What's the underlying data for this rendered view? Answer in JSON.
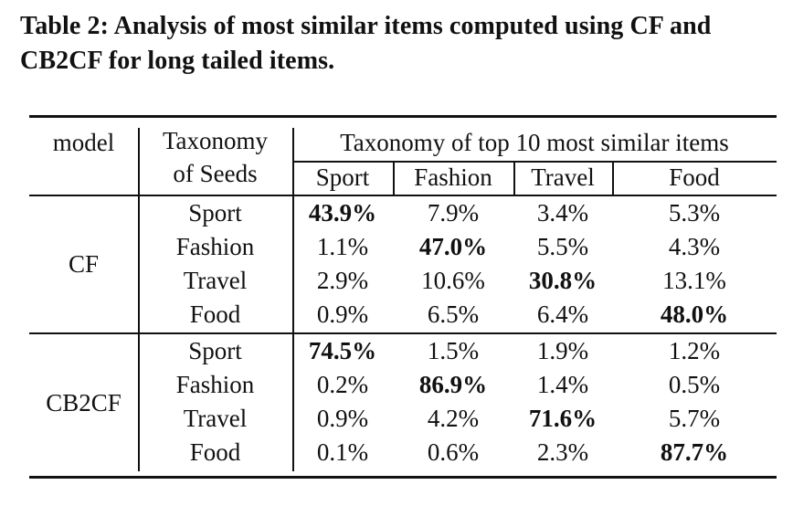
{
  "caption": "Table 2: Analysis of most similar items computed using CF and CB2CF for long tailed items.",
  "table": {
    "header": {
      "model": "model",
      "seed_line1": "Taxonomy",
      "seed_line2": "of Seeds",
      "group": "Taxonomy of top 10 most similar items",
      "columns": [
        "Sport",
        "Fashion",
        "Travel",
        "Food"
      ]
    },
    "groups": [
      {
        "model": "CF",
        "rows": [
          {
            "seed": "Sport",
            "values": [
              "43.9%",
              "7.9%",
              "3.4%",
              "5.3%"
            ],
            "bold": 0
          },
          {
            "seed": "Fashion",
            "values": [
              "1.1%",
              "47.0%",
              "5.5%",
              "4.3%"
            ],
            "bold": 1
          },
          {
            "seed": "Travel",
            "values": [
              "2.9%",
              "10.6%",
              "30.8%",
              "13.1%"
            ],
            "bold": 2
          },
          {
            "seed": "Food",
            "values": [
              "0.9%",
              "6.5%",
              "6.4%",
              "48.0%"
            ],
            "bold": 3
          }
        ]
      },
      {
        "model": "CB2CF",
        "rows": [
          {
            "seed": "Sport",
            "values": [
              "74.5%",
              "1.5%",
              "1.9%",
              "1.2%"
            ],
            "bold": 0
          },
          {
            "seed": "Fashion",
            "values": [
              "0.2%",
              "86.9%",
              "1.4%",
              "0.5%"
            ],
            "bold": 1
          },
          {
            "seed": "Travel",
            "values": [
              "0.9%",
              "4.2%",
              "71.6%",
              "5.7%"
            ],
            "bold": 2
          },
          {
            "seed": "Food",
            "values": [
              "0.1%",
              "0.6%",
              "2.3%",
              "87.7%"
            ],
            "bold": 3
          }
        ]
      }
    ]
  }
}
